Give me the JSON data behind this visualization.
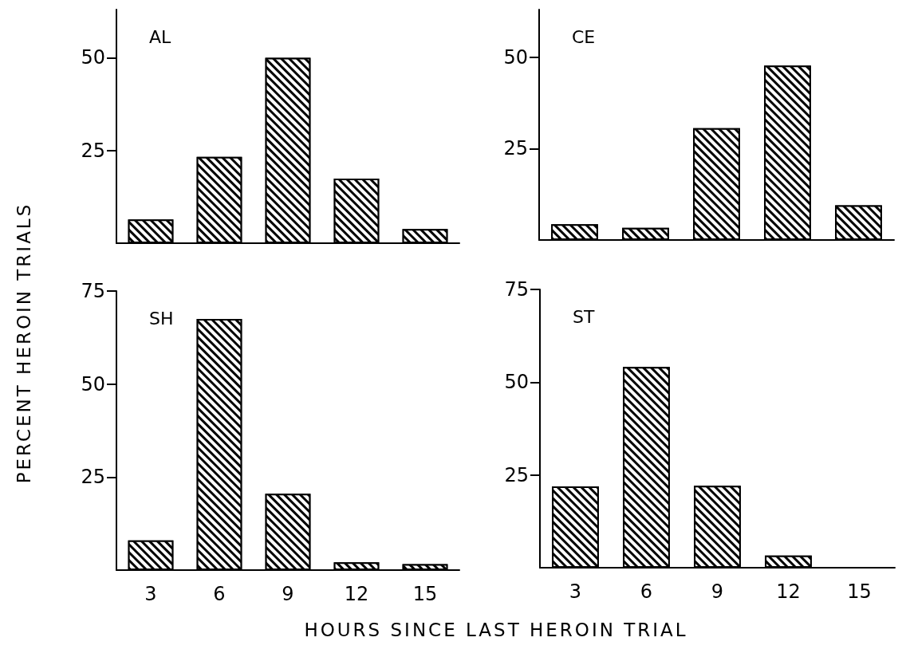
{
  "chart_data": [
    {
      "type": "bar",
      "title": "AL",
      "ylabel": "PERCENT HEROIN TRIALS",
      "categories": [
        "3",
        "6",
        "9",
        "12",
        "15"
      ],
      "values": [
        6.4,
        23.3,
        50,
        17.4,
        3.8
      ],
      "color": "#000000",
      "ylim": [
        0,
        63
      ],
      "yticks": [
        25,
        50
      ],
      "tick_labels": "y"
    },
    {
      "type": "bar",
      "title": "CE",
      "categories": [
        "3",
        "6",
        "9",
        "12",
        "15"
      ],
      "values": [
        4.3,
        3.3,
        30.6,
        47.7,
        9.5
      ],
      "color": "#000000",
      "ylim": [
        0,
        63
      ],
      "yticks": [
        25,
        50
      ],
      "tick_labels": "y"
    },
    {
      "type": "bar",
      "title": "SH",
      "xlabel": "HOURS SINCE LAST HEROIN TRIAL",
      "categories": [
        "3",
        "6",
        "9",
        "12",
        "15"
      ],
      "values": [
        8.0,
        67.5,
        20.5,
        2.1,
        1.6
      ],
      "color": "#000000",
      "ylim": [
        0,
        75
      ],
      "yticks": [
        25,
        50,
        75
      ]
    },
    {
      "type": "bar",
      "title": "ST",
      "categories": [
        "3",
        "6",
        "9",
        "12",
        "15"
      ],
      "values": [
        21.9,
        54.1,
        22.1,
        3.3,
        0
      ],
      "color": "#000000",
      "ylim": [
        0,
        75
      ],
      "yticks": [
        25,
        50,
        75
      ]
    }
  ]
}
